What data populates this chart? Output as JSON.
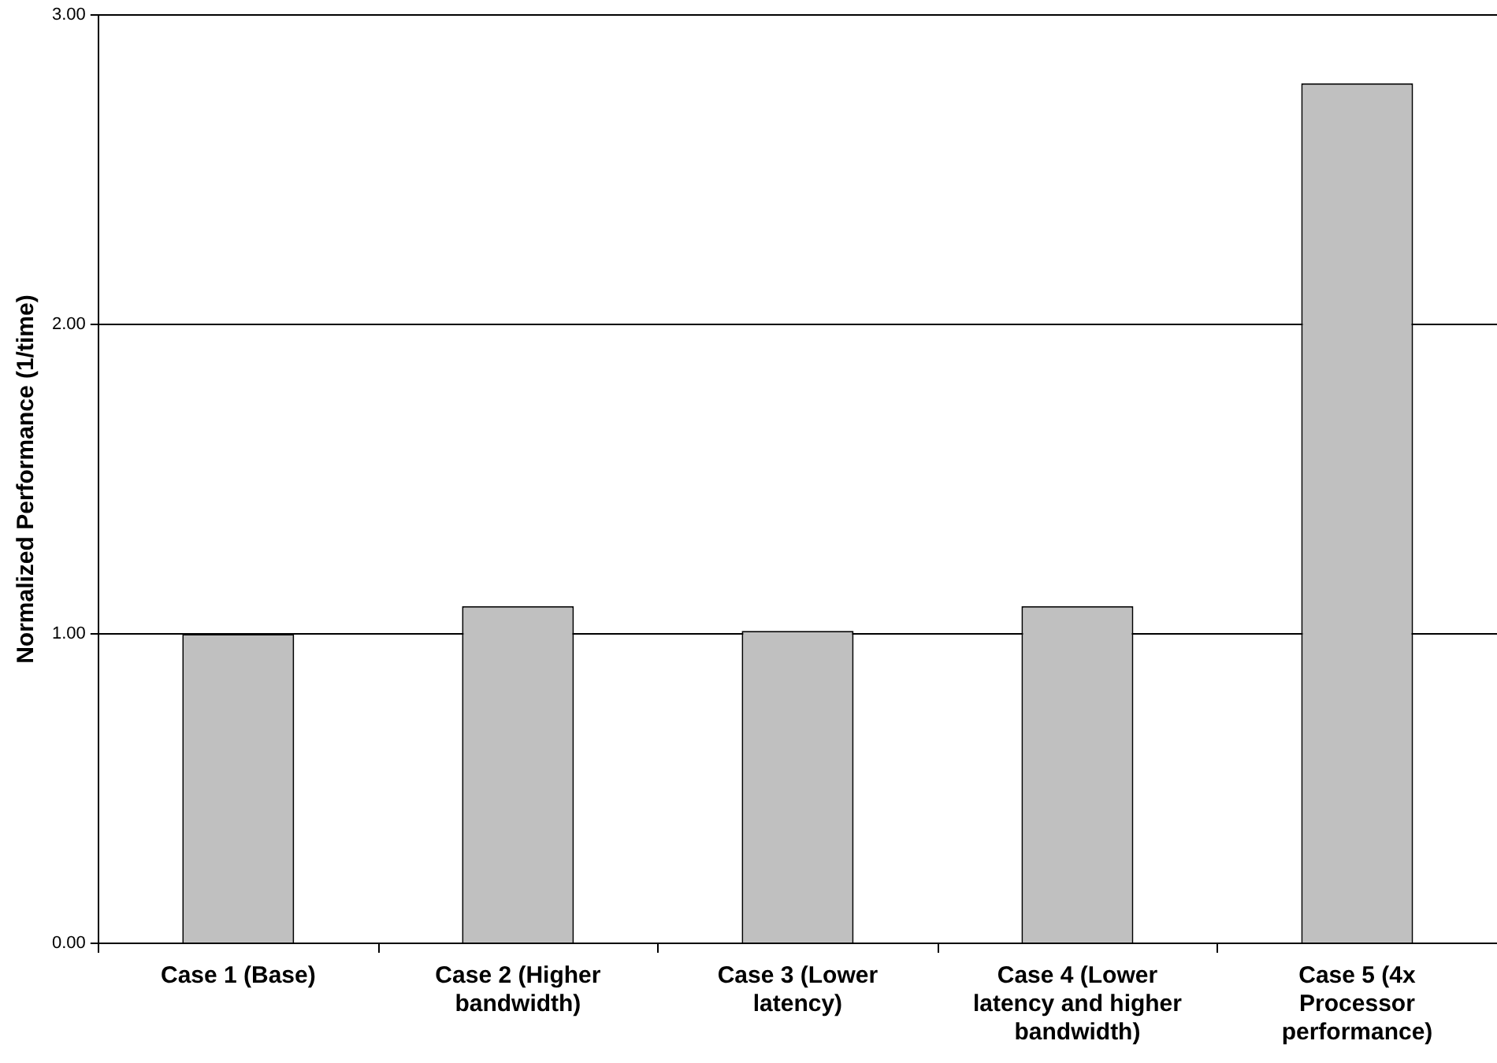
{
  "chart_data": {
    "type": "bar",
    "ylabel": "Normalized Performance (1/time)",
    "categories": [
      "Case 1 (Base)",
      "Case 2 (Higher bandwidth)",
      "Case 3 (Lower latency)",
      "Case 4 (Lower latency and higher bandwidth)",
      "Case 5 (4x Processor performance)"
    ],
    "values": [
      1.0,
      1.09,
      1.01,
      1.09,
      2.78
    ],
    "color": "#c0c0c0",
    "ylim": [
      0,
      3
    ],
    "yticks": [
      {
        "value": 0,
        "label": "0.00"
      },
      {
        "value": 1,
        "label": "1.00"
      },
      {
        "value": 2,
        "label": "2.00"
      },
      {
        "value": 3,
        "label": "3.00"
      }
    ],
    "grid": "y",
    "legend": false
  }
}
